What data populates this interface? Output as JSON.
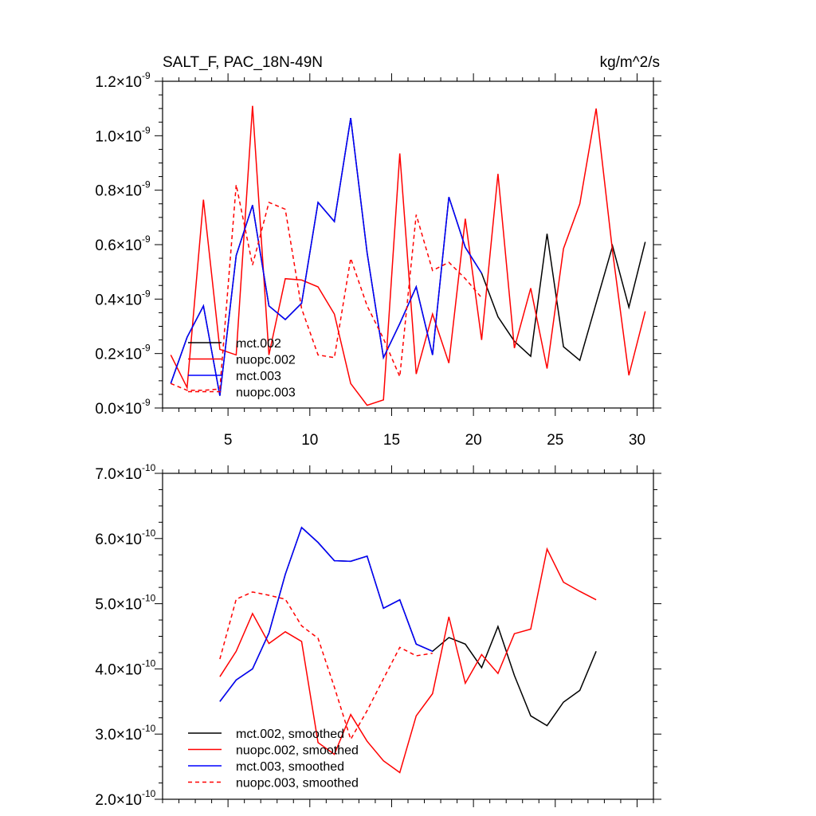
{
  "page_title": "SALT_F, PAC_18N-49N",
  "units": "kg/m^2/s",
  "colors": {
    "black": "#000000",
    "red": "#ff0000",
    "blue": "#0000ff",
    "axis": "#000000",
    "background": "#ffffff"
  },
  "chart_data": [
    {
      "type": "line",
      "title": "SALT_F, PAC_18N-49N",
      "units_label": "kg/m^2/s",
      "xlabel": "",
      "ylabel": "",
      "xlim": [
        1,
        31
      ],
      "ylim": [
        0.0,
        1.2e-09
      ],
      "xticks": [
        5,
        10,
        15,
        20,
        25,
        30
      ],
      "yticks": [
        {
          "value": 0.0,
          "mantissa": "0.0",
          "exponent": "-9"
        },
        {
          "value": 2e-10,
          "mantissa": "0.2",
          "exponent": "-9"
        },
        {
          "value": 4e-10,
          "mantissa": "0.4",
          "exponent": "-9"
        },
        {
          "value": 6e-10,
          "mantissa": "0.6",
          "exponent": "-9"
        },
        {
          "value": 8e-10,
          "mantissa": "0.8",
          "exponent": "-9"
        },
        {
          "value": 1e-09,
          "mantissa": "1.0",
          "exponent": "-9"
        },
        {
          "value": 1.2e-09,
          "mantissa": "1.2",
          "exponent": "-9"
        }
      ],
      "legend_position": "bottom-left",
      "series": [
        {
          "name": "mct.002",
          "color": "#000000",
          "dash": "solid",
          "x": [
            1.5,
            2.5,
            3.5,
            4.5,
            5.5,
            6.5,
            7.5,
            8.5,
            9.5,
            10.5,
            11.5,
            12.5,
            13.5,
            14.5,
            15.5,
            16.5,
            17.5,
            18.5,
            19.5,
            20.5,
            21.5,
            22.5,
            23.5,
            24.5,
            25.5,
            26.5,
            27.5,
            28.5,
            29.5,
            30.5
          ],
          "values": [
            9e-11,
            2.6e-10,
            3.75e-10,
            4.5e-11,
            5.6e-10,
            7.45e-10,
            3.75e-10,
            3.25e-10,
            3.85e-10,
            7.55e-10,
            6.85e-10,
            1.065e-09,
            5.7e-10,
            1.85e-10,
            3.1e-10,
            4.45e-10,
            1.95e-10,
            7.75e-10,
            5.9e-10,
            4.95e-10,
            3.35e-10,
            2.45e-10,
            1.9e-10,
            6.4e-10,
            2.25e-10,
            1.75e-10,
            3.85e-10,
            5.95e-10,
            3.7e-10,
            6.1e-10
          ]
        },
        {
          "name": "nuopc.002",
          "color": "#ff0000",
          "dash": "solid",
          "x": [
            1.5,
            2.5,
            3.5,
            4.5,
            5.5,
            6.5,
            7.5,
            8.5,
            9.5,
            10.5,
            11.5,
            12.5,
            13.5,
            14.5,
            15.5,
            16.5,
            17.5,
            18.5,
            19.5,
            20.5,
            21.5,
            22.5,
            23.5,
            24.5,
            25.5,
            26.5,
            27.5,
            28.5,
            29.5,
            30.5
          ],
          "values": [
            1.95e-10,
            7.5e-11,
            7.65e-10,
            2.15e-10,
            1.95e-10,
            1.11e-09,
            1.95e-10,
            4.75e-10,
            4.7e-10,
            4.45e-10,
            3.45e-10,
            9e-11,
            1e-11,
            3e-11,
            9.35e-10,
            1.25e-10,
            3.45e-10,
            1.65e-10,
            6.95e-10,
            2.5e-10,
            8.6e-10,
            2.2e-10,
            4.4e-10,
            1.45e-10,
            5.85e-10,
            7.5e-10,
            1.1e-09,
            5.75e-10,
            1.2e-10,
            3.55e-10
          ]
        },
        {
          "name": "mct.003",
          "color": "#0000ff",
          "dash": "solid",
          "x": [
            1.5,
            2.5,
            3.5,
            4.5,
            5.5,
            6.5,
            7.5,
            8.5,
            9.5,
            10.5,
            11.5,
            12.5,
            13.5,
            14.5,
            15.5,
            16.5,
            17.5,
            18.5,
            19.5,
            20.5
          ],
          "values": [
            9e-11,
            2.6e-10,
            3.75e-10,
            4.5e-11,
            5.6e-10,
            7.45e-10,
            3.75e-10,
            3.25e-10,
            3.85e-10,
            7.55e-10,
            6.85e-10,
            1.065e-09,
            5.7e-10,
            1.85e-10,
            3.1e-10,
            4.45e-10,
            1.95e-10,
            7.75e-10,
            5.9e-10,
            4.95e-10
          ]
        },
        {
          "name": "nuopc.003",
          "color": "#ff0000",
          "dash": "dashed",
          "x": [
            1.5,
            2.5,
            3.5,
            4.5,
            5.5,
            6.5,
            7.5,
            8.5,
            9.5,
            10.5,
            11.5,
            12.5,
            13.5,
            14.5,
            15.5,
            16.5,
            17.5,
            18.5,
            19.5,
            20.5
          ],
          "values": [
            9e-11,
            6.5e-11,
            6.5e-11,
            7e-11,
            8.2e-10,
            5.25e-10,
            7.55e-10,
            7.3e-10,
            3.65e-10,
            1.95e-10,
            1.85e-10,
            5.5e-10,
            3.75e-10,
            2.55e-10,
            1.15e-10,
            7.1e-10,
            5.05e-10,
            5.35e-10,
            4.75e-10,
            4.05e-10
          ]
        }
      ]
    },
    {
      "type": "line",
      "title": "",
      "xlabel": "",
      "ylabel": "",
      "xlim": [
        1,
        31
      ],
      "ylim": [
        2e-10,
        7e-10
      ],
      "xticks": [
        5,
        10,
        15,
        20,
        25,
        30
      ],
      "yticks": [
        {
          "value": 2e-10,
          "mantissa": "2.0",
          "exponent": "-10"
        },
        {
          "value": 3e-10,
          "mantissa": "3.0",
          "exponent": "-10"
        },
        {
          "value": 4e-10,
          "mantissa": "4.0",
          "exponent": "-10"
        },
        {
          "value": 5e-10,
          "mantissa": "5.0",
          "exponent": "-10"
        },
        {
          "value": 6e-10,
          "mantissa": "6.0",
          "exponent": "-10"
        },
        {
          "value": 7e-10,
          "mantissa": "7.0",
          "exponent": "-10"
        }
      ],
      "legend_position": "bottom-left",
      "series": [
        {
          "name": "mct.002, smoothed",
          "color": "#000000",
          "dash": "solid",
          "x": [
            4.5,
            5.5,
            6.5,
            7.5,
            8.5,
            9.5,
            10.5,
            11.5,
            12.5,
            13.5,
            14.5,
            15.5,
            16.5,
            17.5,
            18.5,
            19.5,
            20.5,
            21.5,
            22.5,
            23.5,
            24.5,
            25.5,
            26.5,
            27.5
          ],
          "values": [
            3.5e-10,
            3.83e-10,
            4e-10,
            4.55e-10,
            5.45e-10,
            6.17e-10,
            5.94e-10,
            5.66e-10,
            5.65e-10,
            5.73e-10,
            4.93e-10,
            5.06e-10,
            4.38e-10,
            4.27e-10,
            4.48e-10,
            4.38e-10,
            4.02e-10,
            4.65e-10,
            3.9e-10,
            3.28e-10,
            3.13e-10,
            3.49e-10,
            3.67e-10,
            4.27e-10
          ]
        },
        {
          "name": "nuopc.002, smoothed",
          "color": "#ff0000",
          "dash": "solid",
          "x": [
            4.5,
            5.5,
            6.5,
            7.5,
            8.5,
            9.5,
            10.5,
            11.5,
            12.5,
            13.5,
            14.5,
            15.5,
            16.5,
            17.5,
            18.5,
            19.5,
            20.5,
            21.5,
            22.5,
            23.5,
            24.5,
            25.5,
            26.5,
            27.5
          ],
          "values": [
            3.88e-10,
            4.27e-10,
            4.85e-10,
            4.39e-10,
            4.57e-10,
            4.42e-10,
            2.87e-10,
            2.69e-10,
            3.3e-10,
            2.89e-10,
            2.59e-10,
            2.41e-10,
            3.28e-10,
            3.62e-10,
            4.8e-10,
            3.78e-10,
            4.22e-10,
            3.93e-10,
            4.54e-10,
            4.61e-10,
            5.84e-10,
            5.33e-10,
            5.19e-10,
            5.06e-10
          ]
        },
        {
          "name": "mct.003, smoothed",
          "color": "#0000ff",
          "dash": "solid",
          "x": [
            4.5,
            5.5,
            6.5,
            7.5,
            8.5,
            9.5,
            10.5,
            11.5,
            12.5,
            13.5,
            14.5,
            15.5,
            16.5,
            17.5
          ],
          "values": [
            3.5e-10,
            3.83e-10,
            4e-10,
            4.55e-10,
            5.45e-10,
            6.17e-10,
            5.94e-10,
            5.66e-10,
            5.65e-10,
            5.73e-10,
            4.93e-10,
            5.06e-10,
            4.38e-10,
            4.27e-10
          ]
        },
        {
          "name": "nuopc.003, smoothed",
          "color": "#ff0000",
          "dash": "dashed",
          "x": [
            4.5,
            5.5,
            6.5,
            7.5,
            8.5,
            9.5,
            10.5,
            11.5,
            12.5,
            13.5,
            14.5,
            15.5,
            16.5,
            17.5
          ],
          "values": [
            4.15e-10,
            5.07e-10,
            5.18e-10,
            5.13e-10,
            5.07e-10,
            4.66e-10,
            4.47e-10,
            3.72e-10,
            2.92e-10,
            3.36e-10,
            3.85e-10,
            4.33e-10,
            4.2e-10,
            4.24e-10
          ]
        }
      ]
    }
  ]
}
